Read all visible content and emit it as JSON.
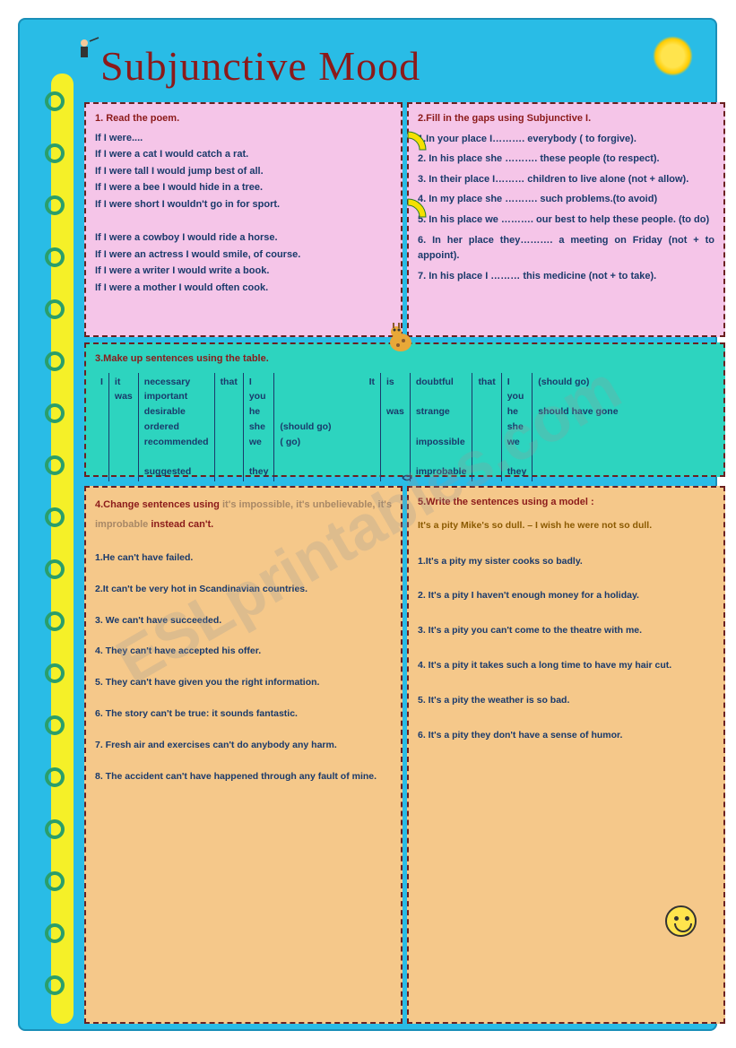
{
  "title": "Subjunctive Mood",
  "colors": {
    "page_bg": "#29bce6",
    "spiral": "#f5f028",
    "box_pink": "#f5c5e8",
    "box_teal": "#2dd4bf",
    "box_orange": "#f5c88a",
    "header_text": "#8b1a1a",
    "body_text": "#1a3a6b"
  },
  "box1": {
    "header": "1. Read the poem.",
    "lines": [
      "If I were....",
      "If I were a cat I would catch a rat.",
      "If I were tall I would jump best of all.",
      "If I were a bee I would hide in a tree.",
      "If I were short I wouldn't go in for sport.",
      "",
      "If I were a cowboy I would ride a horse.",
      "If I were an actress I would smile, of course.",
      "If I were a writer I would write a book.",
      "If I were a mother I would often cook."
    ]
  },
  "box2": {
    "header": "2.Fill in the gaps using Subjunctive I.",
    "items": [
      "1.In your place I………. everybody ( to forgive).",
      "2. In his place she ………. these people (to respect).",
      "3. In their place I……… children to live alone (not + allow).",
      "4. In my place she ……….   such problems.(to avoid)",
      "5. In his place we ………. our best to help these people. (to do)",
      "6. In her place they………. a meeting on Friday (not + to appoint).",
      "7. In his place I ……… this medicine (not + to take)."
    ]
  },
  "box3": {
    "header": "3.Make up sentences using the table.",
    "left_table": {
      "c1": [
        "I"
      ],
      "c2": [
        "it",
        "was"
      ],
      "c3": [
        "necessary",
        "important",
        "desirable",
        "ordered",
        "recommended",
        "",
        "suggested"
      ],
      "c4": [
        "that"
      ],
      "c5": [
        "I",
        "you",
        "he",
        "she",
        "we",
        "",
        "they"
      ],
      "c6": [
        "",
        "",
        "",
        "(should go)",
        "( go)"
      ]
    },
    "right_table": {
      "c1": [
        "It"
      ],
      "c2": [
        "is",
        "",
        "was"
      ],
      "c3": [
        "doubtful",
        "",
        "strange",
        "",
        "impossible",
        "",
        "improbable"
      ],
      "c4": [
        "that"
      ],
      "c5": [
        "I",
        "you",
        "he",
        "she",
        "we",
        "",
        "they"
      ],
      "c6": [
        "(should go)",
        "",
        "should have gone"
      ]
    }
  },
  "box4": {
    "header": "4.Change sentences using",
    "sub": " it's impossible, it's unbelievable, it's improbable ",
    "sub2": "instead can't.",
    "items": [
      "1.He can't have failed.",
      "2.It can't be very hot in Scandinavian countries.",
      "3. We can't have succeeded.",
      "4. They can't have accepted his offer.",
      "5. They can't have given you the right information.",
      "6. The story can't be true: it sounds fantastic.",
      "7. Fresh air and exercises can't do anybody any harm.",
      "8. The accident can't have happened through any fault of mine."
    ]
  },
  "box5": {
    "header": "5.Write the sentences using a model :",
    "model": "It's a pity Mike's so dull. – I wish he were not so dull.",
    "items": [
      "1.It's a pity my sister cooks so badly.",
      "2. It's a pity I haven't enough money for a holiday.",
      "3. It's a pity you can't come to the theatre with me.",
      "4. It's a pity it takes such a long time to have my hair cut.",
      "5. It's a pity the weather is so bad.",
      "6. It's a pity they don't have a sense of humor."
    ]
  },
  "watermark": "ESLprintables.com"
}
